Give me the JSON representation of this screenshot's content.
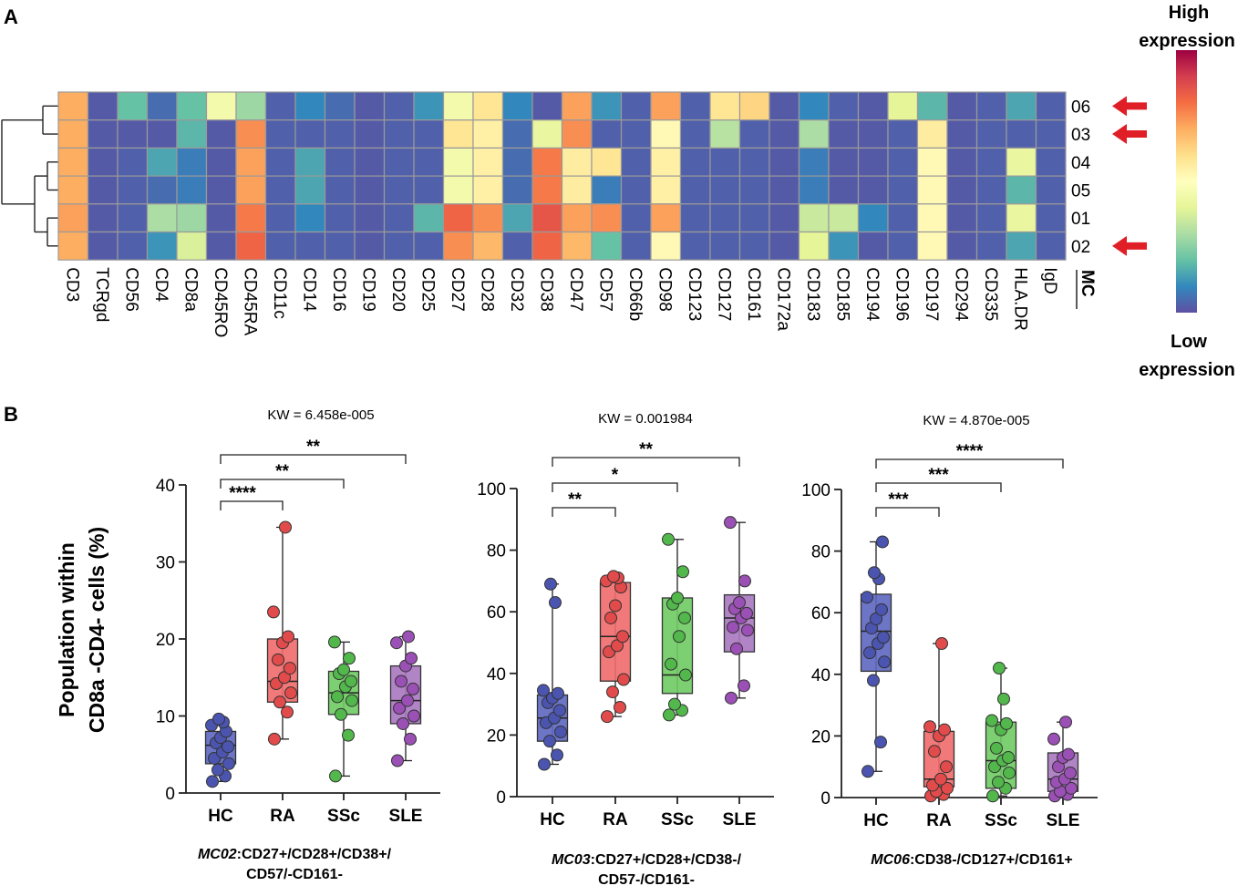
{
  "panel_a_label": "A",
  "panel_b_label": "B",
  "chart_data": [
    {
      "type": "heatmap",
      "title": "",
      "markers": [
        "CD3",
        "TCRgd",
        "CD56",
        "CD4",
        "CD8a",
        "CD45RO",
        "CD45RA",
        "CD11c",
        "CD14",
        "CD16",
        "CD19",
        "CD20",
        "CD25",
        "CD27",
        "CD28",
        "CD32",
        "CD38",
        "CD47",
        "CD57",
        "CD66b",
        "CD98",
        "CD123",
        "CD127",
        "CD161",
        "CD172a",
        "CD183",
        "CD185",
        "CD194",
        "CD196",
        "CD197",
        "CD294",
        "CD335",
        "HLA.DR",
        "IgD"
      ],
      "clusters": [
        "06",
        "03",
        "04",
        "05",
        "01",
        "02"
      ],
      "cluster_axis_label": "MC",
      "legend_high": [
        "High",
        "expression"
      ],
      "legend_low": [
        "Low",
        "expression"
      ],
      "highlighted_clusters": [
        "06",
        "03",
        "02"
      ],
      "value_range": [
        0,
        1
      ],
      "values": [
        [
          0.7,
          0.02,
          0.2,
          0.05,
          0.2,
          0.45,
          0.28,
          0.03,
          0.1,
          0.05,
          0.02,
          0.03,
          0.12,
          0.45,
          0.58,
          0.1,
          0.02,
          0.72,
          0.12,
          0.03,
          0.72,
          0.03,
          0.58,
          0.62,
          0.02,
          0.1,
          0.03,
          0.02,
          0.4,
          0.18,
          0.02,
          0.03,
          0.15,
          0.03
        ],
        [
          0.7,
          0.02,
          0.02,
          0.02,
          0.18,
          0.02,
          0.75,
          0.03,
          0.03,
          0.03,
          0.02,
          0.03,
          0.03,
          0.58,
          0.55,
          0.05,
          0.42,
          0.75,
          0.03,
          0.03,
          0.52,
          0.03,
          0.32,
          0.03,
          0.02,
          0.3,
          0.02,
          0.02,
          0.03,
          0.56,
          0.02,
          0.03,
          0.03,
          0.03
        ],
        [
          0.7,
          0.02,
          0.03,
          0.15,
          0.08,
          0.02,
          0.72,
          0.03,
          0.15,
          0.03,
          0.02,
          0.03,
          0.03,
          0.45,
          0.55,
          0.05,
          0.78,
          0.56,
          0.58,
          0.03,
          0.55,
          0.03,
          0.03,
          0.03,
          0.02,
          0.08,
          0.02,
          0.02,
          0.03,
          0.52,
          0.02,
          0.03,
          0.42,
          0.03
        ],
        [
          0.7,
          0.02,
          0.03,
          0.05,
          0.08,
          0.02,
          0.72,
          0.03,
          0.15,
          0.03,
          0.02,
          0.03,
          0.03,
          0.45,
          0.55,
          0.05,
          0.78,
          0.56,
          0.08,
          0.03,
          0.55,
          0.03,
          0.03,
          0.03,
          0.02,
          0.08,
          0.02,
          0.02,
          0.03,
          0.52,
          0.02,
          0.03,
          0.18,
          0.03
        ],
        [
          0.72,
          0.02,
          0.03,
          0.3,
          0.28,
          0.02,
          0.78,
          0.03,
          0.1,
          0.03,
          0.02,
          0.03,
          0.18,
          0.82,
          0.75,
          0.15,
          0.85,
          0.72,
          0.75,
          0.03,
          0.72,
          0.03,
          0.03,
          0.03,
          0.02,
          0.35,
          0.35,
          0.1,
          0.03,
          0.52,
          0.02,
          0.03,
          0.42,
          0.03
        ],
        [
          0.7,
          0.02,
          0.03,
          0.12,
          0.38,
          0.02,
          0.82,
          0.03,
          0.03,
          0.03,
          0.02,
          0.03,
          0.03,
          0.75,
          0.68,
          0.03,
          0.82,
          0.68,
          0.2,
          0.03,
          0.52,
          0.03,
          0.03,
          0.03,
          0.02,
          0.4,
          0.12,
          0.02,
          0.03,
          0.52,
          0.02,
          0.03,
          0.15,
          0.03
        ]
      ]
    },
    {
      "type": "box",
      "title": "KW = 6.458e-005",
      "ylabel": [
        "Population within",
        "CD8a -CD4- cells (%)"
      ],
      "xlabel": [
        "MC02:CD27+/CD28+/CD38+/",
        "CD57/-CD161-"
      ],
      "xlabel_italic_prefix": "MC02",
      "categories": [
        "HC",
        "RA",
        "SSc",
        "SLE"
      ],
      "ylim": [
        0,
        40
      ],
      "yticks": [
        0,
        10,
        20,
        30,
        40
      ],
      "colors": [
        "#4b55b0",
        "#e24b4b",
        "#52b84c",
        "#9a50b4"
      ],
      "box_fills": [
        "#5d66c0",
        "#ef6a6a",
        "#6fcb62",
        "#a877c0"
      ],
      "boxes": [
        {
          "min": 1.5,
          "q1": 3.8,
          "median": 6.2,
          "q3": 8.0,
          "max": 9.6
        },
        {
          "min": 7.0,
          "q1": 11.8,
          "median": 14.5,
          "q3": 20.0,
          "max": 34.5
        },
        {
          "min": 2.2,
          "q1": 10.2,
          "median": 13.0,
          "q3": 15.8,
          "max": 19.6
        },
        {
          "min": 4.2,
          "q1": 9.0,
          "median": 12.0,
          "q3": 16.5,
          "max": 20.3
        }
      ],
      "points": [
        [
          1.5,
          2.2,
          3.0,
          3.8,
          4.5,
          5.3,
          6.0,
          6.5,
          7.2,
          8.0,
          8.8,
          9.2,
          9.6
        ],
        [
          7.0,
          10.5,
          11.8,
          13.0,
          14.2,
          15.0,
          16.2,
          17.3,
          19.5,
          20.3,
          23.5,
          34.5
        ],
        [
          2.2,
          7.5,
          10.2,
          12.0,
          12.5,
          13.8,
          14.5,
          15.5,
          16.0,
          17.5,
          19.6
        ],
        [
          4.2,
          7.0,
          9.0,
          10.0,
          11.0,
          12.0,
          13.5,
          14.5,
          16.5,
          17.5,
          19.5,
          20.3
        ]
      ],
      "comparisons": [
        {
          "groups": [
            "HC",
            "RA"
          ],
          "label": "****"
        },
        {
          "groups": [
            "HC",
            "SSc"
          ],
          "label": "**"
        },
        {
          "groups": [
            "HC",
            "SLE"
          ],
          "label": "**"
        }
      ]
    },
    {
      "type": "box",
      "title": "KW = 0.001984",
      "xlabel": [
        "MC03:CD27+/CD28+/CD38-/",
        "CD57-/CD161-"
      ],
      "xlabel_italic_prefix": "MC03",
      "categories": [
        "HC",
        "RA",
        "SSc",
        "SLE"
      ],
      "ylim": [
        0,
        100
      ],
      "yticks": [
        0,
        20,
        40,
        60,
        80,
        100
      ],
      "colors": [
        "#4b55b0",
        "#e24b4b",
        "#52b84c",
        "#9a50b4"
      ],
      "box_fills": [
        "#5d66c0",
        "#ef6a6a",
        "#6fcb62",
        "#a877c0"
      ],
      "boxes": [
        {
          "min": 10.5,
          "q1": 18.0,
          "median": 25.5,
          "q3": 33.0,
          "max": 69.0
        },
        {
          "min": 26.0,
          "q1": 37.5,
          "median": 52.0,
          "q3": 69.5,
          "max": 71.5
        },
        {
          "min": 26.5,
          "q1": 33.5,
          "median": 39.5,
          "q3": 64.5,
          "max": 83.5
        },
        {
          "min": 32.0,
          "q1": 47.0,
          "median": 58.0,
          "q3": 65.5,
          "max": 89.0
        }
      ],
      "points": [
        [
          10.5,
          13.5,
          18.0,
          21.0,
          24.0,
          25.5,
          28.0,
          30.5,
          32.0,
          33.5,
          34.5,
          63.0,
          69.0
        ],
        [
          26.0,
          29.0,
          34.0,
          38.0,
          47.0,
          49.0,
          52.0,
          58.0,
          62.0,
          68.0,
          70.0,
          71.0,
          71.5
        ],
        [
          26.5,
          28.0,
          30.0,
          39.5,
          43.0,
          52.0,
          58.0,
          62.5,
          64.5,
          73.0,
          83.5
        ],
        [
          32.0,
          36.0,
          48.0,
          54.0,
          55.0,
          58.0,
          59.5,
          61.0,
          63.0,
          70.0,
          89.0
        ]
      ],
      "comparisons": [
        {
          "groups": [
            "HC",
            "RA"
          ],
          "label": "**"
        },
        {
          "groups": [
            "HC",
            "SSc"
          ],
          "label": "*"
        },
        {
          "groups": [
            "HC",
            "SLE"
          ],
          "label": "**"
        }
      ]
    },
    {
      "type": "box",
      "title": "KW = 4.870e-005",
      "xlabel": [
        "MC06:CD38-/CD127+/CD161+"
      ],
      "xlabel_italic_prefix": "MC06",
      "categories": [
        "HC",
        "RA",
        "SSc",
        "SLE"
      ],
      "ylim": [
        0,
        100
      ],
      "yticks": [
        0,
        20,
        40,
        60,
        80,
        100
      ],
      "colors": [
        "#4b55b0",
        "#e24b4b",
        "#52b84c",
        "#9a50b4"
      ],
      "box_fills": [
        "#5d66c0",
        "#ef6a6a",
        "#6fcb62",
        "#a877c0"
      ],
      "boxes": [
        {
          "min": 8.5,
          "q1": 41.0,
          "median": 54.0,
          "q3": 66.0,
          "max": 83.0
        },
        {
          "min": 0.5,
          "q1": 3.5,
          "median": 6.0,
          "q3": 21.5,
          "max": 50.0
        },
        {
          "min": 0.5,
          "q1": 3.0,
          "median": 12.0,
          "q3": 24.5,
          "max": 42.0
        },
        {
          "min": 0.5,
          "q1": 2.0,
          "median": 6.0,
          "q3": 14.5,
          "max": 24.5
        }
      ],
      "points": [
        [
          8.5,
          18.0,
          38.0,
          44.0,
          47.0,
          50.0,
          52.0,
          55.0,
          58.0,
          61.0,
          65.0,
          71.0,
          73.0,
          83.0
        ],
        [
          0.5,
          1.0,
          2.0,
          3.0,
          4.0,
          6.0,
          10.0,
          15.0,
          20.0,
          22.0,
          23.0,
          50.0
        ],
        [
          0.5,
          3.0,
          5.0,
          8.0,
          10.0,
          12.0,
          13.0,
          16.0,
          22.0,
          24.0,
          25.0,
          32.0,
          42.0
        ],
        [
          0.5,
          1.0,
          2.0,
          3.0,
          5.0,
          6.0,
          8.0,
          10.0,
          13.0,
          14.0,
          19.0,
          24.5
        ]
      ],
      "comparisons": [
        {
          "groups": [
            "HC",
            "RA"
          ],
          "label": "***"
        },
        {
          "groups": [
            "HC",
            "SSc"
          ],
          "label": "***"
        },
        {
          "groups": [
            "HC",
            "SLE"
          ],
          "label": "****"
        }
      ]
    }
  ]
}
